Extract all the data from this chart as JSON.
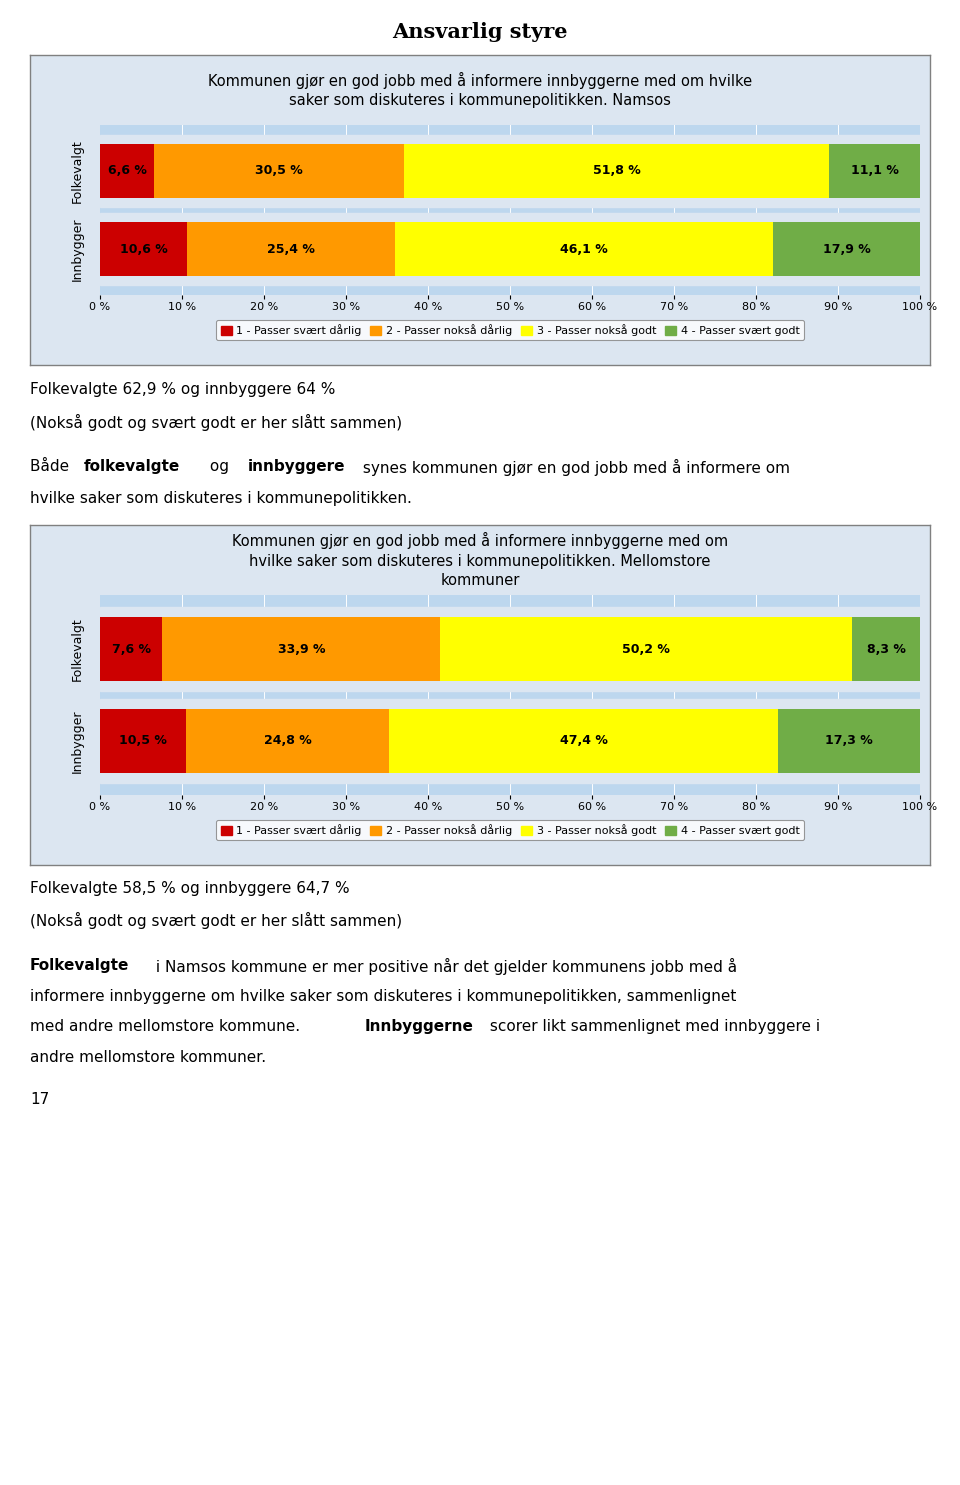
{
  "page_title": "Ansvarlig styre",
  "chart1": {
    "title": "Kommunen gjør en god jobb med å informere innbyggerne med om hvilke\nsaker som diskuteres i kommunepolitikken. Namsos",
    "rows": [
      "Folkevalgt",
      "Innbygger"
    ],
    "values": [
      [
        6.6,
        30.5,
        51.8,
        11.1
      ],
      [
        10.6,
        25.4,
        46.1,
        17.9
      ]
    ],
    "labels": [
      "6,6 %",
      "30,5 %",
      "51,8 %",
      "11,1 %",
      "10,6 %",
      "25,4 %",
      "46,1 %",
      "17,9 %"
    ]
  },
  "chart2": {
    "title": "Kommunen gjør en god jobb med å informere innbyggerne med om\nhvilke saker som diskuteres i kommunepolitikken. Mellomstore\nkommuner",
    "rows": [
      "Folkevalgt",
      "Innbygger"
    ],
    "values": [
      [
        7.6,
        33.9,
        50.2,
        8.3
      ],
      [
        10.5,
        24.8,
        47.4,
        17.3
      ]
    ],
    "labels": [
      "7,6 %",
      "33,9 %",
      "50,2 %",
      "8,3 %",
      "10,5 %",
      "24,8 %",
      "47,4 %",
      "17,3 %"
    ]
  },
  "colors": [
    "#cc0000",
    "#ff9900",
    "#ffff00",
    "#70ad47"
  ],
  "legend_labels": [
    "1 - Passer svært dårlig",
    "2 - Passer nokså dårlig",
    "3 - Passer nokså godt",
    "4 - Passer svært godt"
  ],
  "bar_bg_color": "#bdd7ee",
  "chart_bg_color": "#dce6f1",
  "box_bg_color": "#dce6f1",
  "box_border_color": "#808080",
  "text1_line1": "Folkevalgte 62,9 % og innbyggere 64 %",
  "text1_line2": "(Nokså godt og svært godt er her slått sammen)",
  "text2_line1_parts": [
    [
      "Både ",
      false
    ],
    [
      "folkevalgte",
      true
    ],
    [
      " og ",
      false
    ],
    [
      "innbyggere",
      true
    ],
    [
      " synes kommunen gjør en god jobb med å informere om",
      false
    ]
  ],
  "text2_line2": "hvilke saker som diskuteres i kommunepolitikken.",
  "text3_line1": "Folkevalgte 58,5 % og innbyggere 64,7 %",
  "text3_line2": "(Nokså godt og svært godt er her slått sammen)",
  "text4_line1_parts": [
    [
      "Folkevalgte",
      true
    ],
    [
      " i Namsos kommune er mer positive når det gjelder kommunens jobb med å",
      false
    ]
  ],
  "text4_line2": "informere innbyggerne om hvilke saker som diskuteres i kommunepolitikken, sammenlignet",
  "text4_line3_parts": [
    [
      "med andre mellomstore kommune. ",
      false
    ],
    [
      "Innbyggerne",
      true
    ],
    [
      " scorer likt sammenlignet med innbyggere i",
      false
    ]
  ],
  "text4_line4": "andre mellomstore kommuner.",
  "page_number": "17",
  "xlabel_ticks": [
    "0 %",
    "10 %",
    "20 %",
    "30 %",
    "40 %",
    "50 %",
    "60 %",
    "70 %",
    "80 %",
    "90 %",
    "100 %"
  ]
}
